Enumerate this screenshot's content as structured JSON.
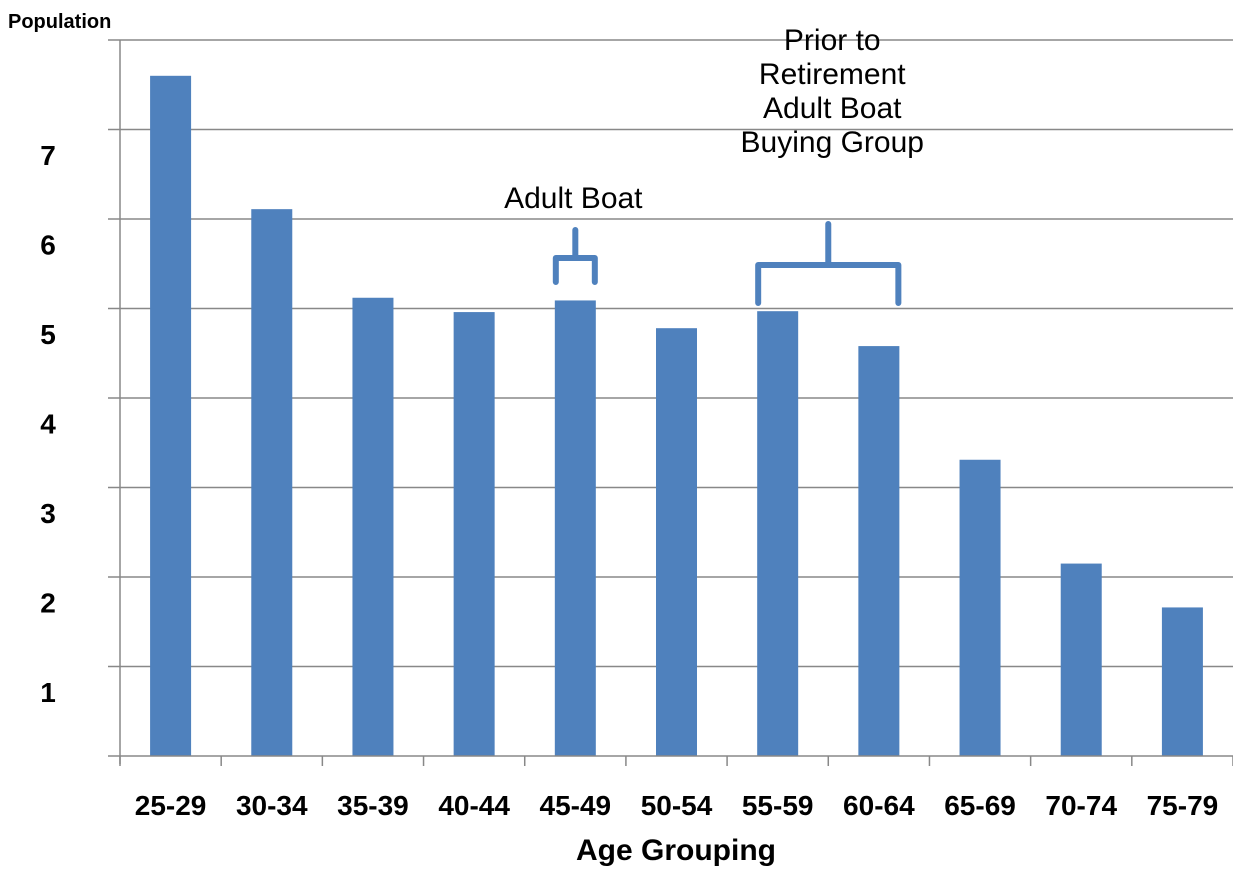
{
  "chart_data": {
    "type": "bar",
    "title": "",
    "ylabel": "Population",
    "xlabel": "Age Grouping",
    "categories": [
      "25-29",
      "30-34",
      "35-39",
      "40-44",
      "45-49",
      "50-54",
      "55-59",
      "60-64",
      "65-69",
      "70-74",
      "75-79"
    ],
    "values": [
      7.6,
      6.11,
      5.12,
      4.96,
      5.09,
      4.78,
      4.97,
      4.58,
      3.31,
      2.15,
      1.66
    ],
    "ylim": [
      0,
      8
    ],
    "yticks": [
      "1",
      "2",
      "3",
      "4",
      "5",
      "6",
      "7"
    ],
    "bar_color": "#4f81bd",
    "grid": true,
    "annotations": [
      {
        "name": "adult-boat",
        "lines": [
          "Adult Boat"
        ],
        "bracket_from": "45-49",
        "bracket_to": "45-49"
      },
      {
        "name": "prior-to-retirement",
        "lines": [
          "Prior to",
          "Retirement",
          "Adult Boat",
          "Buying Group"
        ],
        "bracket_from": "55-59",
        "bracket_to": "60-64"
      }
    ]
  }
}
